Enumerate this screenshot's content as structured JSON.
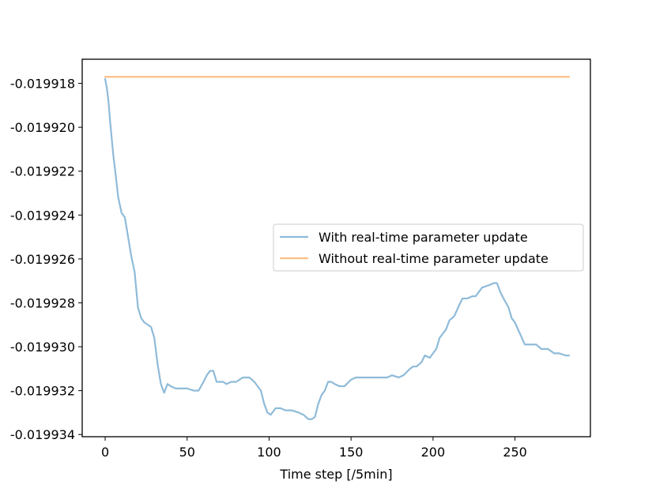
{
  "chart_data": {
    "type": "line",
    "title": "",
    "xlabel": "Time step [/5min]",
    "ylabel": "",
    "xlim": [
      -14,
      296
    ],
    "ylim": [
      -0.0199341,
      -0.0199169
    ],
    "xticks": [
      0,
      50,
      100,
      150,
      200,
      250
    ],
    "xtick_labels": [
      "0",
      "50",
      "100",
      "150",
      "200",
      "250"
    ],
    "yticks": [
      -0.019918,
      -0.01992,
      -0.019922,
      -0.019924,
      -0.019926,
      -0.019928,
      -0.01993,
      -0.019932,
      -0.019934
    ],
    "ytick_labels": [
      "-0.019918",
      "-0.019920",
      "-0.019922",
      "-0.019924",
      "-0.019926",
      "-0.019928",
      "-0.019930",
      "-0.019932",
      "-0.019934"
    ],
    "grid": false,
    "legend_position": "center-right",
    "series": [
      {
        "name": "With real-time parameter update",
        "color": "#1f77b4",
        "opacity": 0.5,
        "x": [
          0,
          1,
          2,
          3,
          4,
          5,
          6,
          8,
          10,
          12,
          14,
          16,
          18,
          20,
          22,
          24,
          26,
          28,
          30,
          32,
          34,
          36,
          38,
          40,
          43,
          46,
          50,
          54,
          57,
          60,
          62,
          64,
          66,
          68,
          70,
          72,
          74,
          77,
          80,
          84,
          88,
          91,
          95,
          97,
          99,
          101,
          104,
          107,
          110,
          114,
          118,
          121,
          124,
          126,
          128,
          130,
          132,
          134,
          136,
          138,
          140,
          143,
          146,
          150,
          153,
          156,
          160,
          165,
          170,
          172,
          175,
          179,
          182,
          186,
          188,
          190,
          193,
          195,
          198,
          200,
          202,
          204,
          206,
          208,
          210,
          213,
          216,
          218,
          221,
          224,
          226,
          228,
          230,
          234,
          237,
          239,
          241,
          243,
          246,
          248,
          250,
          253,
          256,
          259,
          263,
          266,
          270,
          274,
          277,
          281,
          283
        ],
        "y": [
          -0.0199178,
          -0.0199182,
          -0.0199188,
          -0.0199197,
          -0.0199205,
          -0.0199213,
          -0.0199219,
          -0.0199232,
          -0.0199239,
          -0.0199241,
          -0.019925,
          -0.0199259,
          -0.0199266,
          -0.0199282,
          -0.0199287,
          -0.0199289,
          -0.019929,
          -0.0199291,
          -0.0199296,
          -0.0199308,
          -0.0199317,
          -0.0199321,
          -0.0199317,
          -0.0199318,
          -0.0199319,
          -0.0199319,
          -0.0199319,
          -0.019932,
          -0.019932,
          -0.0199316,
          -0.0199313,
          -0.0199311,
          -0.0199311,
          -0.0199316,
          -0.0199316,
          -0.0199316,
          -0.0199317,
          -0.0199316,
          -0.0199316,
          -0.0199314,
          -0.0199314,
          -0.0199316,
          -0.019932,
          -0.0199326,
          -0.019933,
          -0.0199331,
          -0.0199328,
          -0.0199328,
          -0.0199329,
          -0.0199329,
          -0.019933,
          -0.0199331,
          -0.0199333,
          -0.0199333,
          -0.0199332,
          -0.0199326,
          -0.0199322,
          -0.019932,
          -0.0199316,
          -0.0199316,
          -0.0199317,
          -0.0199318,
          -0.0199318,
          -0.0199315,
          -0.0199314,
          -0.0199314,
          -0.0199314,
          -0.0199314,
          -0.0199314,
          -0.0199314,
          -0.0199313,
          -0.0199314,
          -0.0199313,
          -0.019931,
          -0.0199309,
          -0.0199309,
          -0.0199307,
          -0.0199304,
          -0.0199305,
          -0.0199303,
          -0.0199301,
          -0.0199296,
          -0.0199294,
          -0.0199292,
          -0.0199288,
          -0.0199286,
          -0.0199281,
          -0.0199278,
          -0.0199278,
          -0.0199277,
          -0.0199277,
          -0.0199275,
          -0.0199273,
          -0.0199272,
          -0.0199271,
          -0.0199271,
          -0.0199275,
          -0.0199278,
          -0.0199282,
          -0.0199287,
          -0.0199289,
          -0.0199294,
          -0.0199299,
          -0.0199299,
          -0.0199299,
          -0.0199301,
          -0.0199301,
          -0.0199303,
          -0.0199303,
          -0.0199304,
          -0.0199304
        ]
      },
      {
        "name": "Without real-time parameter update",
        "color": "#ff7f0e",
        "opacity": 0.5,
        "x": [
          0,
          283
        ],
        "y": [
          -0.0199177,
          -0.0199177
        ]
      }
    ]
  }
}
